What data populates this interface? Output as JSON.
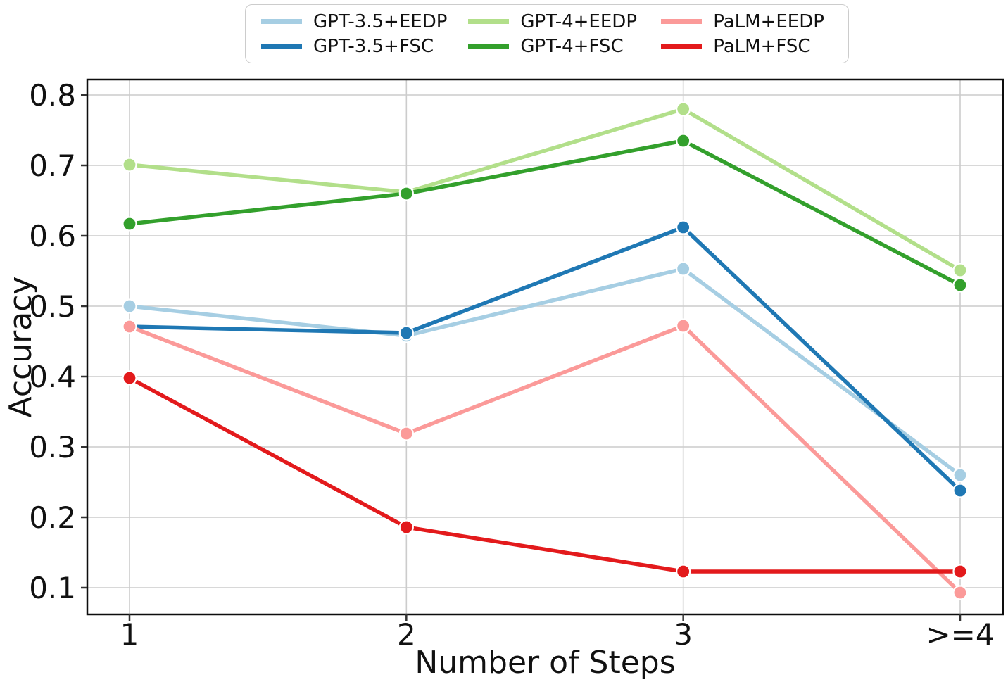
{
  "chart_data": {
    "type": "line",
    "title": "",
    "xlabel": "Number of Steps",
    "ylabel": "Accuracy",
    "categories": [
      "1",
      "2",
      "3",
      ">=4"
    ],
    "yticks": [
      0.1,
      0.2,
      0.3,
      0.4,
      0.5,
      0.6,
      0.7,
      0.8
    ],
    "ylim": [
      0.06,
      0.82
    ],
    "grid": true,
    "legend_position": "top-center",
    "legend_columns": 3,
    "marker": "circle",
    "series": [
      {
        "name": "GPT-3.5+EEDP",
        "color": "#a6cee3",
        "values": [
          0.5,
          0.458,
          0.553,
          0.26
        ]
      },
      {
        "name": "GPT-3.5+FSC",
        "color": "#1f78b4",
        "values": [
          0.471,
          0.462,
          0.612,
          0.238
        ]
      },
      {
        "name": "GPT-4+EEDP",
        "color": "#b2df8a",
        "values": [
          0.701,
          0.662,
          0.78,
          0.551
        ]
      },
      {
        "name": "GPT-4+FSC",
        "color": "#33a02c",
        "values": [
          0.617,
          0.66,
          0.735,
          0.53
        ]
      },
      {
        "name": "PaLM+EEDP",
        "color": "#fb9a99",
        "values": [
          0.471,
          0.319,
          0.472,
          0.093
        ]
      },
      {
        "name": "PaLM+FSC",
        "color": "#e31a1c",
        "values": [
          0.398,
          0.186,
          0.123,
          0.123
        ]
      }
    ],
    "colors": {
      "grid": "#cccccc",
      "axes": "#0d0d0d",
      "text": "#111111"
    }
  }
}
